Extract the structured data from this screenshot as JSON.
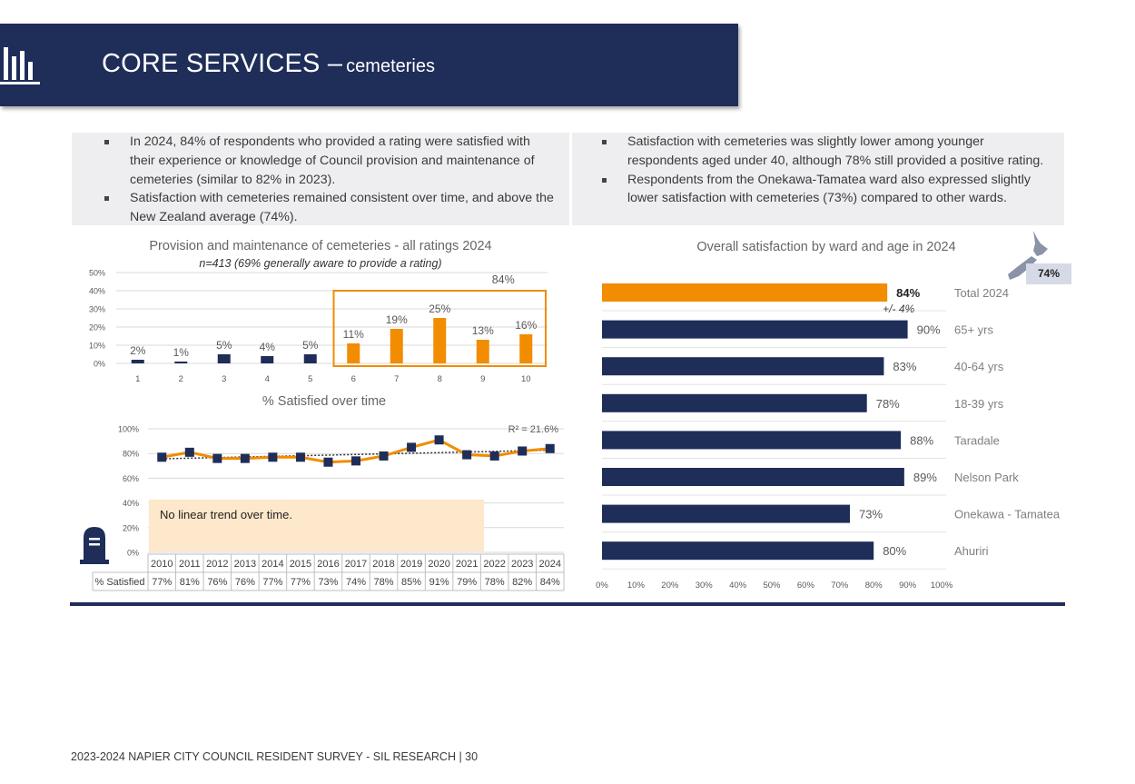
{
  "header": {
    "title_main": "CORE SERVICES –",
    "title_sub": "cemeteries",
    "icon": "bar-chart-icon"
  },
  "bullets_left": [
    "In 2024, 84% of respondents who provided a rating were satisfied with their experience or knowledge of Council provision and maintenance of cemeteries (similar to 82% in 2023).",
    "Satisfaction with cemeteries remained consistent over time, and above the New Zealand average (74%)."
  ],
  "bullets_right": [
    "Satisfaction with cemeteries was slightly lower among younger respondents aged under 40, although 78% still provided a positive rating.",
    "Respondents from the Onekawa-Tamatea ward also expressed slightly lower satisfaction with cemeteries (73%) compared to other wards."
  ],
  "colors": {
    "navy": "#1f2d59",
    "orange": "#f28c00",
    "note_bg": "#fde8cc"
  },
  "chart_data": [
    {
      "type": "bar",
      "title": "Provision and maintenance of cemeteries - all ratings 2024",
      "subtitle": "n=413 (69% generally aware to provide a rating)",
      "categories": [
        "1",
        "2",
        "3",
        "4",
        "5",
        "6",
        "7",
        "8",
        "9",
        "10"
      ],
      "values": [
        2,
        1,
        5,
        4,
        5,
        11,
        19,
        25,
        13,
        16
      ],
      "value_labels": [
        "2%",
        "1%",
        "5%",
        "4%",
        "5%",
        "11%",
        "19%",
        "25%",
        "13%",
        "16%"
      ],
      "highlight_categories": [
        "6",
        "7",
        "8",
        "9",
        "10"
      ],
      "highlight_label": "84%",
      "yticks": [
        "0%",
        "10%",
        "20%",
        "30%",
        "40%",
        "50%"
      ],
      "ylim": [
        0,
        50
      ],
      "grid": true
    },
    {
      "type": "line",
      "title": "% Satisfied over time",
      "x": [
        "2010",
        "2011",
        "2012",
        "2013",
        "2014",
        "2015",
        "2016",
        "2017",
        "2018",
        "2019",
        "2020",
        "2021",
        "2022",
        "2023",
        "2024"
      ],
      "values": [
        77,
        81,
        76,
        76,
        77,
        77,
        73,
        74,
        78,
        85,
        91,
        79,
        78,
        82,
        84
      ],
      "value_labels": [
        "77%",
        "81%",
        "76%",
        "76%",
        "77%",
        "77%",
        "73%",
        "74%",
        "78%",
        "85%",
        "91%",
        "79%",
        "78%",
        "82%",
        "84%"
      ],
      "row_label": "% Satisfied",
      "yticks": [
        "0%",
        "20%",
        "40%",
        "60%",
        "80%",
        "100%"
      ],
      "ylim": [
        0,
        100
      ],
      "trendline": true,
      "trend_label": "R² = 21.6%",
      "annotation": "No linear trend over time.",
      "grid": true
    },
    {
      "type": "bar",
      "orientation": "horizontal",
      "title": "Overall satisfaction by ward and age in 2024",
      "categories": [
        "Total 2024",
        "65+ yrs",
        "40-64 yrs",
        "18-39 yrs",
        "Taradale",
        "Nelson Park",
        "Onekawa - Tamatea",
        "Ahuriri"
      ],
      "values": [
        84,
        90,
        83,
        78,
        88,
        89,
        73,
        80
      ],
      "value_labels": [
        "84%",
        "90%",
        "83%",
        "78%",
        "88%",
        "89%",
        "73%",
        "80%"
      ],
      "highlight_categories": [
        "Total 2024"
      ],
      "margin_of_error": "+/- 4%",
      "xticks": [
        "0%",
        "10%",
        "20%",
        "30%",
        "40%",
        "50%",
        "60%",
        "70%",
        "80%",
        "90%",
        "100%"
      ],
      "xlim": [
        0,
        100
      ],
      "nz_average_label": "74%"
    }
  ],
  "footer": "2023-2024 NAPIER CITY COUNCIL RESIDENT SURVEY - SIL RESEARCH | 30"
}
